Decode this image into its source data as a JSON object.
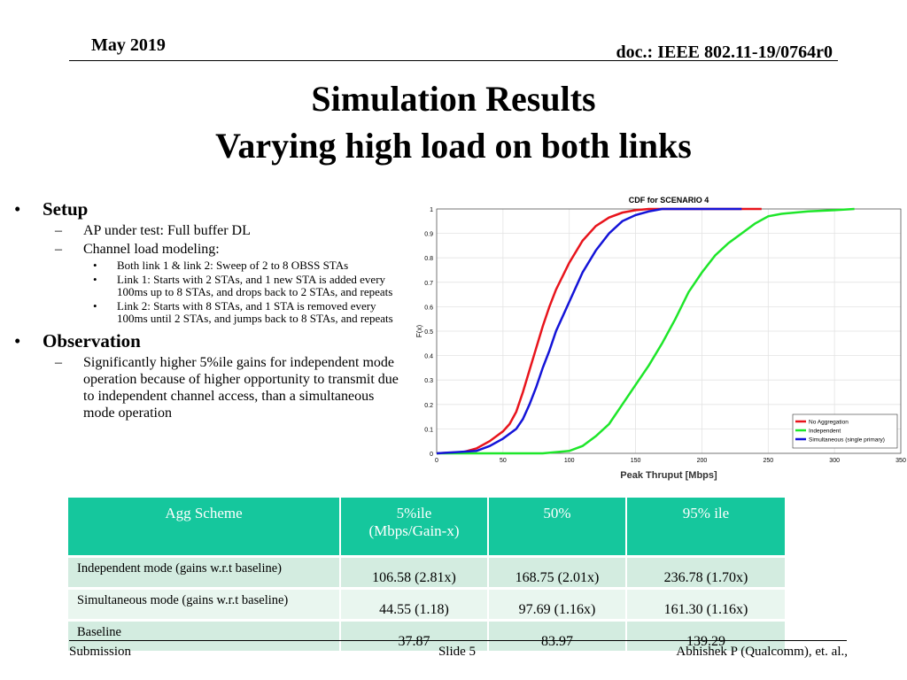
{
  "header": {
    "date": "May 2019",
    "doc": "doc.: IEEE 802.11-19/0764r0"
  },
  "title": [
    "Simulation Results",
    "Varying high load on both links"
  ],
  "bullets": [
    {
      "text": "Setup",
      "items": [
        {
          "text": "AP under test: Full buffer DL",
          "items": []
        },
        {
          "text": "Channel load modeling:",
          "items": [
            "Both link 1 & link 2: Sweep of 2 to 8 OBSS STAs",
            "Link 1: Starts with 2 STAs, and 1 new STA is added every 100ms up to 8 STAs, and drops back to 2 STAs, and repeats",
            "Link 2: Starts with 8 STAs, and 1 STA is removed every 100ms until 2 STAs, and jumps back to 8 STAs, and repeats"
          ]
        }
      ]
    },
    {
      "text": "Observation",
      "items": [
        {
          "text": "Significantly higher 5%ile gains for independent mode operation because of higher opportunity to transmit due to independent channel access, than a simultaneous mode operation",
          "items": []
        }
      ]
    }
  ],
  "chart_data": {
    "type": "line",
    "title": "CDF for SCENARIO 4",
    "xlabel": "Peak Thruput [Mbps]",
    "ylabel": "F(x)",
    "xlim": [
      0,
      350
    ],
    "xticks": [
      0,
      50,
      100,
      150,
      200,
      250,
      300,
      350
    ],
    "ylim": [
      0,
      1
    ],
    "yticks": [
      0,
      0.1,
      0.2,
      0.3,
      0.4,
      0.5,
      0.6,
      0.7,
      0.8,
      0.9,
      1
    ],
    "grid": true,
    "legend": "lower right",
    "series": [
      {
        "name": "No Aggregation",
        "color": "#e8141c",
        "x": [
          0,
          20,
          30,
          40,
          50,
          55,
          60,
          65,
          70,
          75,
          80,
          85,
          90,
          100,
          110,
          120,
          130,
          140,
          150,
          160,
          180,
          200,
          245
        ],
        "values": [
          0,
          0.005,
          0.02,
          0.05,
          0.09,
          0.12,
          0.17,
          0.25,
          0.34,
          0.43,
          0.52,
          0.6,
          0.67,
          0.78,
          0.87,
          0.93,
          0.965,
          0.985,
          0.995,
          1,
          1,
          1,
          1
        ]
      },
      {
        "name": "Independent",
        "color": "#1ee62a",
        "x": [
          0,
          80,
          100,
          110,
          120,
          130,
          140,
          150,
          160,
          170,
          180,
          190,
          200,
          210,
          220,
          230,
          240,
          250,
          260,
          280,
          300,
          315
        ],
        "values": [
          0,
          0,
          0.01,
          0.03,
          0.07,
          0.12,
          0.2,
          0.28,
          0.36,
          0.45,
          0.55,
          0.66,
          0.74,
          0.81,
          0.86,
          0.9,
          0.94,
          0.97,
          0.98,
          0.99,
          0.995,
          1
        ]
      },
      {
        "name": "Simultaneous (single primary)",
        "color": "#1414d8",
        "x": [
          0,
          30,
          40,
          50,
          60,
          65,
          70,
          75,
          80,
          85,
          90,
          95,
          100,
          110,
          120,
          130,
          140,
          150,
          160,
          170,
          200,
          230
        ],
        "values": [
          0,
          0.01,
          0.03,
          0.06,
          0.1,
          0.14,
          0.2,
          0.27,
          0.35,
          0.42,
          0.5,
          0.56,
          0.62,
          0.74,
          0.83,
          0.9,
          0.95,
          0.975,
          0.99,
          1,
          1,
          1
        ]
      }
    ]
  },
  "table": {
    "header": [
      "Agg Scheme",
      "5%ile (Mbps/Gain-x)",
      "50%",
      "95% ile"
    ],
    "rows": [
      [
        "Independent mode (gains w.r.t baseline)",
        "106.58 (2.81x)",
        "168.75 (2.01x)",
        "236.78 (1.70x)"
      ],
      [
        "Simultaneous mode (gains w.r.t baseline)",
        "44.55 (1.18)",
        "97.69 (1.16x)",
        "161.30 (1.16x)"
      ],
      [
        "Baseline",
        "37.87",
        "83.97",
        "139.29"
      ]
    ]
  },
  "footer": {
    "left": "Submission",
    "center": "Slide 5",
    "right": "Abhishek P (Qualcomm), et. al.,"
  }
}
